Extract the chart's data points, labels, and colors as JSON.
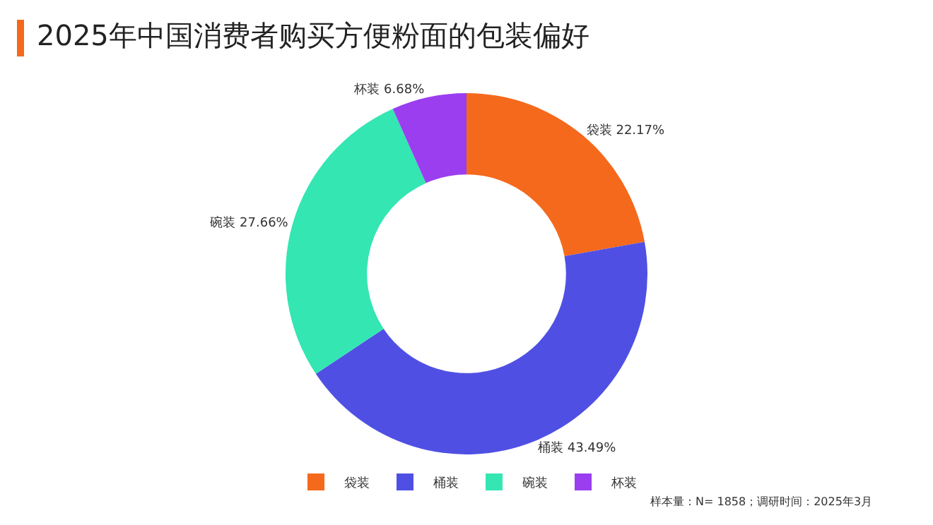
{
  "chart_data": {
    "type": "donut",
    "title": "2025年中国消费者购买方便粉面的包装偏好",
    "categories": [
      "袋装",
      "桶装",
      "碗装",
      "杯装"
    ],
    "values": [
      22.17,
      43.49,
      27.66,
      6.68
    ],
    "value_labels": [
      "22.17%",
      "43.49%",
      "27.66%",
      "6.68%"
    ],
    "colors": [
      "#f5691c",
      "#4f50e3",
      "#33e6b2",
      "#9a3ef0"
    ],
    "legend": "bottom",
    "annotations": [
      "样本量：N= 1858；调研时间：2025年3月"
    ]
  }
}
